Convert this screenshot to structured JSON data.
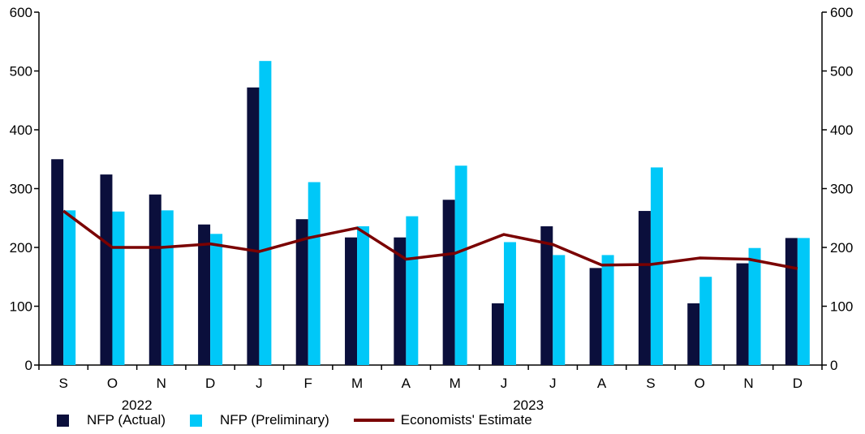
{
  "chart_data": {
    "type": "bar",
    "categories": [
      "S",
      "O",
      "N",
      "D",
      "J",
      "F",
      "M",
      "A",
      "M",
      "J",
      "J",
      "A",
      "S",
      "O",
      "N",
      "D"
    ],
    "year_labels": [
      {
        "label": "2022",
        "start_index": 0,
        "end_index": 3
      },
      {
        "label": "2023",
        "start_index": 4,
        "end_index": 15
      }
    ],
    "series": [
      {
        "name": "NFP (Actual)",
        "kind": "bar",
        "color": "#0b0f3c",
        "values": [
          350,
          324,
          290,
          239,
          472,
          248,
          217,
          217,
          281,
          105,
          236,
          165,
          262,
          105,
          173,
          216
        ]
      },
      {
        "name": "NFP (Preliminary)",
        "kind": "bar",
        "color": "#00c8f8",
        "values": [
          263,
          261,
          263,
          223,
          517,
          311,
          236,
          253,
          339,
          209,
          187,
          187,
          336,
          150,
          199,
          216
        ]
      },
      {
        "name": "Economists' Estimate",
        "kind": "line",
        "color": "#7a0000",
        "values": [
          262,
          200,
          200,
          206,
          193,
          216,
          233,
          180,
          190,
          222,
          205,
          170,
          171,
          182,
          180,
          164
        ]
      }
    ],
    "ylim": [
      0,
      600
    ],
    "yticks": [
      0,
      100,
      200,
      300,
      400,
      500,
      600
    ],
    "y_axis_both_sides": true,
    "grid": false,
    "legend_position": "bottom-left",
    "title": "",
    "xlabel": "",
    "ylabel": ""
  }
}
